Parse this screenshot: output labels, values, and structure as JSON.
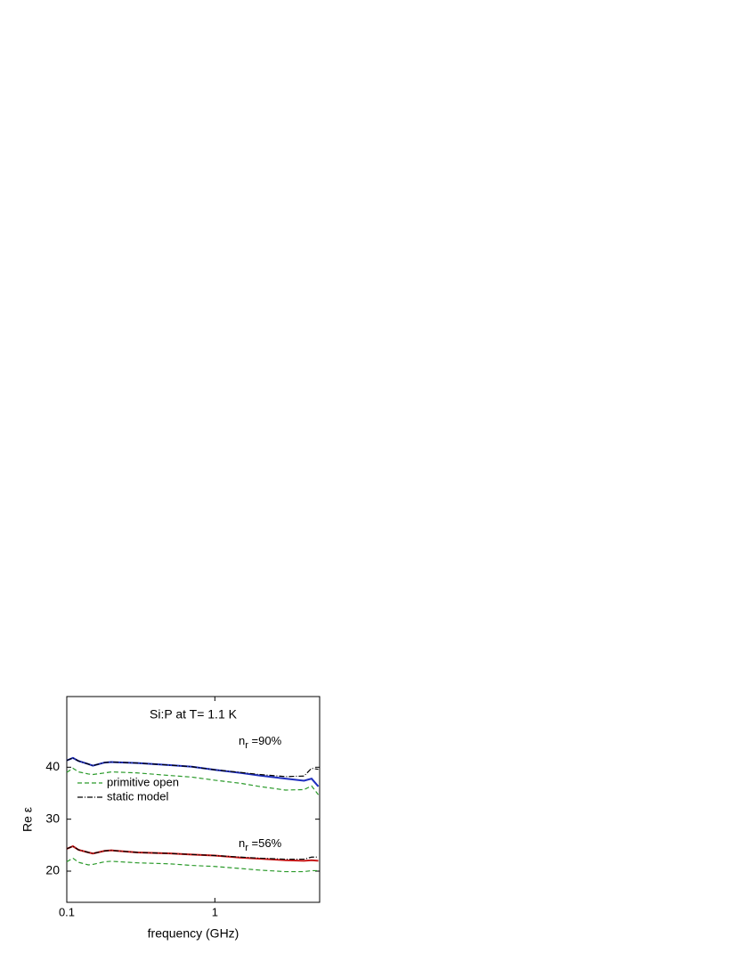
{
  "chart_data": {
    "type": "line",
    "title": "Si:P at T= 1.1 K",
    "x_label": "frequency (GHz)",
    "y_label": "Re ε",
    "xscale": "log",
    "xlim": [
      0.1,
      5.1
    ],
    "xticks": [
      0.1,
      1
    ],
    "ylim": [
      14,
      53.6
    ],
    "yticks": [
      20,
      30,
      40
    ],
    "x": [
      0.1,
      0.11,
      0.12,
      0.14,
      0.15,
      0.18,
      0.2,
      0.3,
      0.5,
      0.7,
      1,
      1.5,
      2,
      3,
      4,
      4.5,
      5
    ],
    "series": [
      {
        "color": "#1f2fbf",
        "style": "solid",
        "values": [
          41.3,
          41.8,
          41.2,
          40.6,
          40.3,
          40.9,
          41.0,
          40.8,
          40.4,
          40.1,
          39.5,
          38.9,
          38.4,
          37.8,
          37.4,
          37.8,
          36.3
        ]
      },
      {
        "name": "static model",
        "color": "#000000",
        "style": "dashdot",
        "values": [
          41.3,
          41.8,
          41.2,
          40.6,
          40.3,
          40.9,
          41.0,
          40.8,
          40.4,
          40.1,
          39.5,
          39.0,
          38.6,
          38.2,
          38.3,
          39.8,
          39.6
        ]
      },
      {
        "name": "primitive open",
        "color": "#2a9a2a",
        "style": "dashed",
        "values": [
          39.0,
          39.8,
          39.1,
          38.7,
          38.6,
          38.9,
          39.1,
          38.9,
          38.4,
          38.1,
          37.5,
          36.9,
          36.3,
          35.6,
          35.7,
          36.4,
          34.7
        ]
      },
      {
        "color": "#c81818",
        "style": "solid",
        "values": [
          24.3,
          24.8,
          24.1,
          23.6,
          23.4,
          23.9,
          24.0,
          23.6,
          23.4,
          23.2,
          23.0,
          22.6,
          22.4,
          22.1,
          22.0,
          22.1,
          22.0
        ]
      },
      {
        "color": "#000000",
        "style": "dashdot",
        "values": [
          24.3,
          24.8,
          24.1,
          23.6,
          23.4,
          23.9,
          24.0,
          23.6,
          23.4,
          23.2,
          23.0,
          22.7,
          22.5,
          22.3,
          22.3,
          22.7,
          22.7
        ]
      },
      {
        "color": "#2a9a2a",
        "style": "dashed",
        "values": [
          21.8,
          22.5,
          21.7,
          21.2,
          21.3,
          21.8,
          21.9,
          21.6,
          21.4,
          21.1,
          20.9,
          20.5,
          20.2,
          19.9,
          19.9,
          20.1,
          20.1
        ]
      }
    ],
    "annotations": [
      {
        "base": "n",
        "sub": "r",
        "text": " =90%"
      },
      {
        "base": "n",
        "sub": "r",
        "text": " =56%"
      }
    ]
  }
}
